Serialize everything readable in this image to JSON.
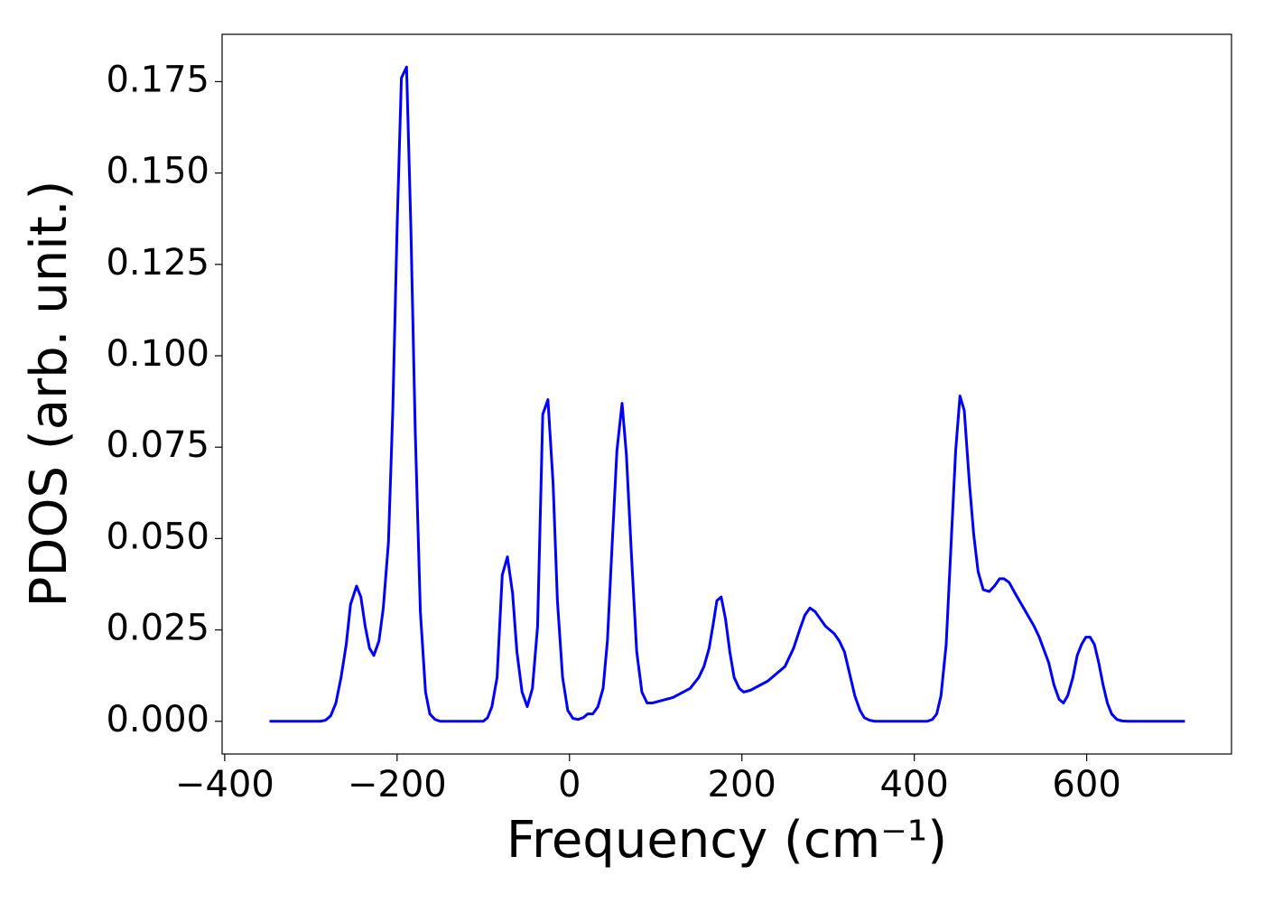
{
  "chart_data": {
    "type": "line",
    "xlabel": "Frequency (cm⁻¹)",
    "ylabel": "PDOS (arb. unit.)",
    "series": [
      {
        "name": "PDOS",
        "color": "#0000ff",
        "x": [
          -348,
          -289,
          -283,
          -277,
          -271,
          -265,
          -259,
          -254,
          -247,
          -242,
          -237,
          -232,
          -227,
          -221,
          -216,
          -210,
          -205,
          -200,
          -195,
          -189,
          -184,
          -179,
          -173,
          -167,
          -162,
          -156,
          -150,
          -100,
          -95,
          -90,
          -84,
          -78,
          -72,
          -66,
          -61,
          -55,
          -49,
          -43,
          -37,
          -31,
          -25,
          -19,
          -14,
          -8,
          -2,
          4,
          10,
          16,
          21,
          27,
          33,
          39,
          44,
          49,
          55,
          61,
          66,
          72,
          78,
          84,
          90,
          96,
          120,
          140,
          150,
          156,
          162,
          167,
          171,
          176,
          181,
          186,
          191,
          197,
          202,
          210,
          230,
          250,
          260,
          267,
          273,
          279,
          285,
          291,
          297,
          307,
          313,
          319,
          325,
          331,
          337,
          342,
          348,
          354,
          415,
          421,
          426,
          431,
          437,
          443,
          448,
          453,
          458,
          464,
          469,
          474,
          480,
          487,
          493,
          499,
          504,
          510,
          517,
          539,
          545,
          556,
          562,
          568,
          573,
          578,
          584,
          589,
          594,
          599,
          604,
          609,
          614,
          619,
          624,
          629,
          635,
          641,
          648,
          714
        ],
        "values": [
          0,
          0,
          0.0003,
          0.0015,
          0.005,
          0.012,
          0.021,
          0.032,
          0.037,
          0.034,
          0.026,
          0.02,
          0.018,
          0.022,
          0.031,
          0.049,
          0.085,
          0.135,
          0.176,
          0.179,
          0.135,
          0.08,
          0.03,
          0.008,
          0.002,
          0.0005,
          0,
          0,
          0.001,
          0.004,
          0.012,
          0.04,
          0.045,
          0.035,
          0.019,
          0.008,
          0.004,
          0.009,
          0.026,
          0.084,
          0.088,
          0.065,
          0.033,
          0.012,
          0.003,
          0.0008,
          0.0005,
          0.001,
          0.002,
          0.002,
          0.004,
          0.009,
          0.022,
          0.046,
          0.074,
          0.087,
          0.073,
          0.045,
          0.019,
          0.008,
          0.005,
          0.005,
          0.0065,
          0.009,
          0.012,
          0.015,
          0.02,
          0.027,
          0.033,
          0.034,
          0.028,
          0.019,
          0.012,
          0.009,
          0.008,
          0.0085,
          0.011,
          0.015,
          0.02,
          0.025,
          0.029,
          0.031,
          0.03,
          0.028,
          0.026,
          0.024,
          0.022,
          0.019,
          0.013,
          0.007,
          0.003,
          0.001,
          0.0003,
          0,
          0,
          0.0005,
          0.002,
          0.007,
          0.021,
          0.05,
          0.074,
          0.089,
          0.085,
          0.065,
          0.051,
          0.041,
          0.036,
          0.0355,
          0.037,
          0.039,
          0.039,
          0.038,
          0.035,
          0.026,
          0.023,
          0.016,
          0.01,
          0.006,
          0.005,
          0.007,
          0.012,
          0.018,
          0.021,
          0.023,
          0.023,
          0.021,
          0.016,
          0.01,
          0.005,
          0.002,
          0.0005,
          0.0001,
          0,
          0
        ]
      }
    ],
    "xlim": [
      -403,
      768
    ],
    "ylim": [
      -0.00895,
      0.18795
    ],
    "xticks": [
      {
        "value": -400,
        "label": "−400"
      },
      {
        "value": -200,
        "label": "−200"
      },
      0,
      200,
      400,
      600
    ],
    "yticks": [
      {
        "value": 0,
        "label": "0.000"
      },
      {
        "value": 0.025,
        "label": "0.025"
      },
      {
        "value": 0.05,
        "label": "0.050"
      },
      {
        "value": 0.075,
        "label": "0.075"
      },
      {
        "value": 0.1,
        "label": "0.100"
      },
      {
        "value": 0.125,
        "label": "0.125"
      },
      {
        "value": 0.15,
        "label": "0.150"
      },
      {
        "value": 0.175,
        "label": "0.175"
      }
    ],
    "grid": false
  }
}
